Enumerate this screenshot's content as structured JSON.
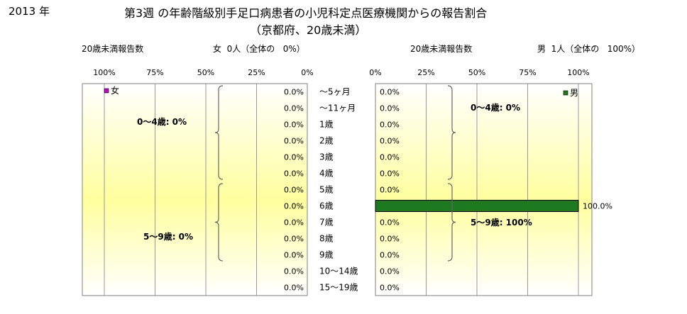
{
  "header": {
    "year": "2013 年",
    "title_line1": "第3週 の年齢階級別手足口病患者の小児科定点医療機関からの報告割合",
    "title_line2": "（京都府、20歳未満）"
  },
  "left_header": {
    "label": "20歳未満報告数",
    "summary": "女  0人（全体の   0%）"
  },
  "right_header": {
    "label": "20歳未満報告数",
    "summary": "男  1人（全体の   100%）"
  },
  "chart_data": {
    "type": "bar",
    "categories": [
      "～5ヶ月",
      "～11ヶ月",
      "1歳",
      "2歳",
      "3歳",
      "4歳",
      "5歳",
      "6歳",
      "7歳",
      "8歳",
      "9歳",
      "10～14歳",
      "15～19歳"
    ],
    "xlim": [
      0,
      100
    ],
    "left_axis_ticks": [
      "100%",
      "75%",
      "50%",
      "25%",
      "0%"
    ],
    "right_axis_ticks": [
      "0%",
      "25%",
      "50%",
      "75%",
      "100%"
    ],
    "series": [
      {
        "name": "女",
        "color": "#cc00cc",
        "values": [
          0,
          0,
          0,
          0,
          0,
          0,
          0,
          0,
          0,
          0,
          0,
          0,
          0
        ],
        "labels": [
          "0.0%",
          "0.0%",
          "0.0%",
          "0.0%",
          "0.0%",
          "0.0%",
          "0.0%",
          "0.0%",
          "0.0%",
          "0.0%",
          "0.0%",
          "0.0%",
          "0.0%"
        ]
      },
      {
        "name": "男",
        "color": "#1e7a1e",
        "values": [
          0,
          0,
          0,
          0,
          0,
          0,
          0,
          100,
          0,
          0,
          0,
          0,
          0
        ],
        "labels": [
          "0.0%",
          "0.0%",
          "0.0%",
          "0.0%",
          "0.0%",
          "0.0%",
          "0.0%",
          "100.0%",
          "0.0%",
          "0.0%",
          "0.0%",
          "0.0%",
          "0.0%"
        ]
      }
    ],
    "annotations": {
      "left": [
        "0～4歳:  0%",
        "5～9歳:  0%"
      ],
      "right": [
        "0～4歳:  0%",
        "5～9歳: 100%"
      ]
    }
  }
}
